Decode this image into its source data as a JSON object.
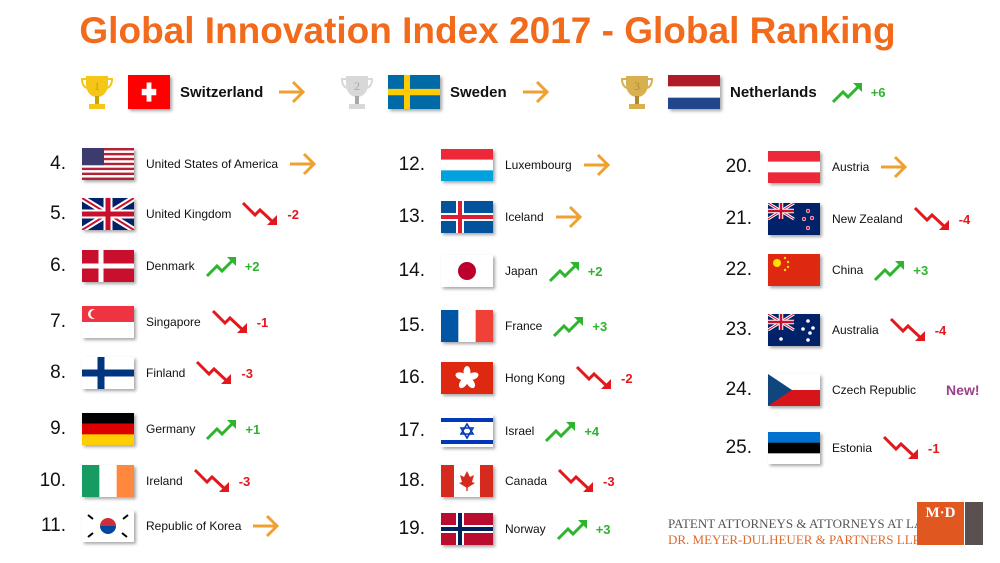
{
  "title": "Global Innovation Index 2017 - Global Ranking",
  "colors": {
    "title": "#f26a1b",
    "up": "#2db52d",
    "down": "#e3181d",
    "same": "#f0a030",
    "new": "#9a3e8a"
  },
  "top3": [
    {
      "rank": "1",
      "trophy": "gold-trophy-icon",
      "flag": "ch",
      "name": "Switzerland",
      "trend": "same",
      "change": ""
    },
    {
      "rank": "2",
      "trophy": "silver-trophy-icon",
      "flag": "se",
      "name": "Sweden",
      "trend": "same",
      "change": ""
    },
    {
      "rank": "3",
      "trophy": "bronze-trophy-icon",
      "flag": "nl",
      "name": "Netherlands",
      "trend": "up",
      "change": "+6"
    }
  ],
  "columns": [
    [
      {
        "rank": "4.",
        "flag": "us",
        "name": "United States of America",
        "trend": "same",
        "change": ""
      },
      {
        "rank": "5.",
        "flag": "gb",
        "name": "United Kingdom",
        "trend": "down",
        "change": "-2"
      },
      {
        "rank": "6.",
        "flag": "dk",
        "name": "Denmark",
        "trend": "up",
        "change": "+2"
      },
      {
        "rank": "7.",
        "flag": "sg",
        "name": "Singapore",
        "trend": "down",
        "change": "-1"
      },
      {
        "rank": "8.",
        "flag": "fi",
        "name": "Finland",
        "trend": "down",
        "change": "-3"
      },
      {
        "rank": "9.",
        "flag": "de",
        "name": "Germany",
        "trend": "up",
        "change": "+1"
      },
      {
        "rank": "10.",
        "flag": "ie",
        "name": "Ireland",
        "trend": "down",
        "change": "-3"
      },
      {
        "rank": "11.",
        "flag": "kr",
        "name": "Republic of Korea",
        "trend": "same",
        "change": ""
      }
    ],
    [
      {
        "rank": "12.",
        "flag": "lu",
        "name": "Luxembourg",
        "trend": "same",
        "change": ""
      },
      {
        "rank": "13.",
        "flag": "is",
        "name": "Iceland",
        "trend": "same",
        "change": ""
      },
      {
        "rank": "14.",
        "flag": "jp",
        "name": "Japan",
        "trend": "up",
        "change": "+2"
      },
      {
        "rank": "15.",
        "flag": "fr",
        "name": "France",
        "trend": "up",
        "change": "+3"
      },
      {
        "rank": "16.",
        "flag": "hk",
        "name": "Hong Kong",
        "trend": "down",
        "change": "-2"
      },
      {
        "rank": "17.",
        "flag": "il",
        "name": "Israel",
        "trend": "up",
        "change": "+4"
      },
      {
        "rank": "18.",
        "flag": "ca",
        "name": "Canada",
        "trend": "down",
        "change": "-3"
      },
      {
        "rank": "19.",
        "flag": "no",
        "name": "Norway",
        "trend": "up",
        "change": "+3"
      }
    ],
    [
      {
        "rank": "20.",
        "flag": "at",
        "name": "Austria",
        "trend": "same",
        "change": ""
      },
      {
        "rank": "21.",
        "flag": "nz",
        "name": "New Zealand",
        "trend": "down",
        "change": "-4"
      },
      {
        "rank": "22.",
        "flag": "cn",
        "name": "China",
        "trend": "up",
        "change": "+3"
      },
      {
        "rank": "23.",
        "flag": "au",
        "name": "Australia",
        "trend": "down",
        "change": "-4"
      },
      {
        "rank": "24.",
        "flag": "cz",
        "name": "Czech Republic",
        "trend": "new",
        "change": "New!"
      },
      {
        "rank": "25.",
        "flag": "ee",
        "name": "Estonia",
        "trend": "down",
        "change": "-1"
      }
    ]
  ],
  "footer": {
    "line1": "PATENT ATTORNEYS & ATTORNEYS AT LAW",
    "line2": "DR. MEYER-DULHEUER & PARTNERS LLP",
    "logo": "M·D"
  }
}
